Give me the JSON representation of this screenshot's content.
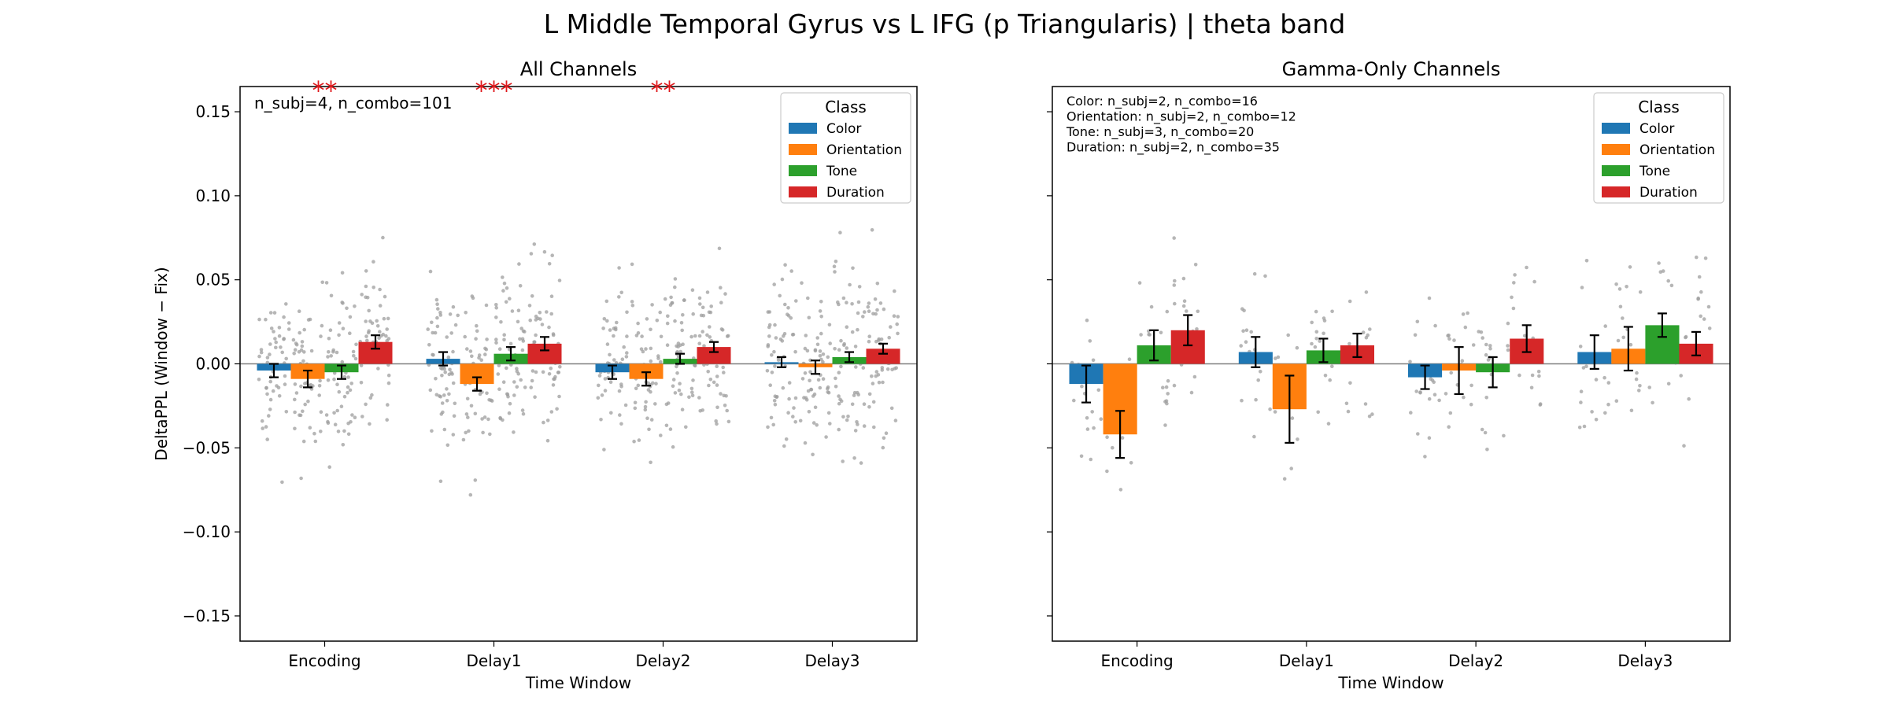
{
  "suptitle": "L Middle Temporal Gyrus vs L IFG (p Triangularis)  |  theta band",
  "colors": {
    "Color": "#1f77b4",
    "Orientation": "#ff7f0e",
    "Tone": "#2ca02c",
    "Duration": "#d62728",
    "significance": "#e0191c",
    "points": "#9e9e9e"
  },
  "chart_data": [
    {
      "type": "bar",
      "title": "All Channels",
      "xlabel": "Time Window",
      "ylabel": "DeltaPPL (Window − Fix)",
      "ylim": [
        -0.165,
        0.165
      ],
      "yticks": [
        -0.15,
        -0.1,
        -0.05,
        0.0,
        0.05,
        0.1,
        0.15
      ],
      "ytick_labels": [
        "−0.15",
        "−0.10",
        "−0.05",
        "0.00",
        "0.05",
        "0.10",
        "0.15"
      ],
      "show_ytick_labels": true,
      "categories": [
        "Encoding",
        "Delay1",
        "Delay2",
        "Delay3"
      ],
      "legend_title": "Class",
      "legend_loc": "upper right",
      "series": [
        {
          "name": "Color",
          "values": [
            -0.004,
            0.003,
            -0.005,
            0.001
          ],
          "err": [
            0.004,
            0.004,
            0.004,
            0.003
          ]
        },
        {
          "name": "Orientation",
          "values": [
            -0.009,
            -0.012,
            -0.009,
            -0.002
          ],
          "err": [
            0.005,
            0.004,
            0.004,
            0.004
          ]
        },
        {
          "name": "Tone",
          "values": [
            -0.005,
            0.006,
            0.003,
            0.004
          ],
          "err": [
            0.004,
            0.004,
            0.003,
            0.003
          ]
        },
        {
          "name": "Duration",
          "values": [
            0.013,
            0.012,
            0.01,
            0.009
          ],
          "err": [
            0.004,
            0.004,
            0.003,
            0.003
          ]
        }
      ],
      "points_range": [
        -0.15,
        0.155
      ],
      "points_per_bar": 55,
      "annotations": [
        "n_subj=4, n_combo=101"
      ],
      "significance": [
        {
          "category": "Encoding",
          "label": "**"
        },
        {
          "category": "Delay1",
          "label": "***"
        },
        {
          "category": "Delay2",
          "label": "**"
        }
      ]
    },
    {
      "type": "bar",
      "title": "Gamma-Only Channels",
      "xlabel": "Time Window",
      "ylabel": "",
      "ylim": [
        -0.165,
        0.165
      ],
      "yticks": [
        -0.15,
        -0.1,
        -0.05,
        0.0,
        0.05,
        0.1,
        0.15
      ],
      "ytick_labels": [],
      "show_ytick_labels": false,
      "categories": [
        "Encoding",
        "Delay1",
        "Delay2",
        "Delay3"
      ],
      "legend_title": "Class",
      "legend_loc": "upper right",
      "series": [
        {
          "name": "Color",
          "values": [
            -0.012,
            0.007,
            -0.008,
            0.007
          ],
          "err": [
            0.011,
            0.009,
            0.007,
            0.01
          ]
        },
        {
          "name": "Orientation",
          "values": [
            -0.042,
            -0.027,
            -0.004,
            0.009
          ],
          "err": [
            0.014,
            0.02,
            0.014,
            0.013
          ]
        },
        {
          "name": "Tone",
          "values": [
            0.011,
            0.008,
            -0.005,
            0.023
          ],
          "err": [
            0.009,
            0.007,
            0.009,
            0.007
          ]
        },
        {
          "name": "Duration",
          "values": [
            0.02,
            0.011,
            0.015,
            0.012
          ],
          "err": [
            0.009,
            0.007,
            0.008,
            0.007
          ]
        }
      ],
      "points_range": [
        -0.15,
        0.125
      ],
      "points_per_bar": 18,
      "annotations": [
        "Color: n_subj=2, n_combo=16",
        "Orientation: n_subj=2, n_combo=12",
        "Tone: n_subj=3, n_combo=20",
        "Duration: n_subj=2, n_combo=35"
      ],
      "significance": []
    }
  ]
}
